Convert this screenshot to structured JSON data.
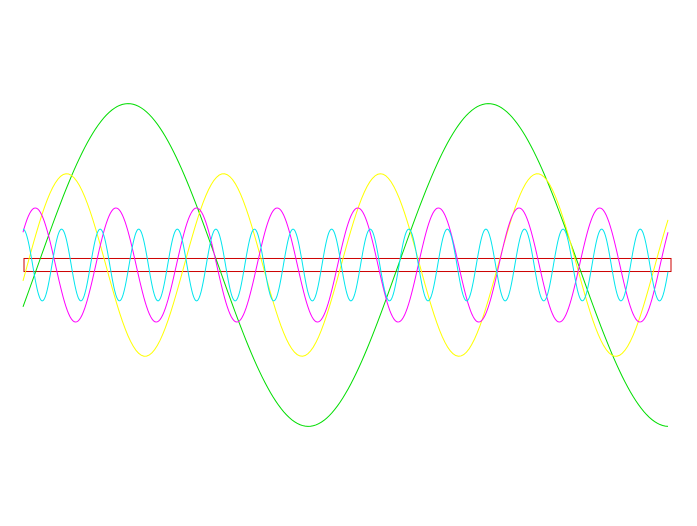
{
  "chart_data": {
    "type": "line",
    "title": "",
    "xlabel": "",
    "ylabel": "",
    "grid": false,
    "legend": "none",
    "x_range": [
      0,
      1
    ],
    "y_range": [
      -1,
      1
    ],
    "band": {
      "y_low": -0.04,
      "y_high": 0.04,
      "color": "#cc0000"
    },
    "series": [
      {
        "color": "#00dd00",
        "amplitude": 0.99,
        "cycles": 1.79,
        "phase_deg": -15,
        "samples": 241
      },
      {
        "color": "#ffff00",
        "amplitude": 0.56,
        "cycles": 4.11,
        "phase_deg": -10,
        "samples": 241
      },
      {
        "color": "#ff00ff",
        "amplitude": 0.35,
        "cycles": 8.0,
        "phase_deg": 35,
        "samples": 481
      },
      {
        "color": "#00e5ee",
        "amplitude": 0.22,
        "cycles": 16.72,
        "phase_deg": 90,
        "samples": 961
      }
    ]
  }
}
